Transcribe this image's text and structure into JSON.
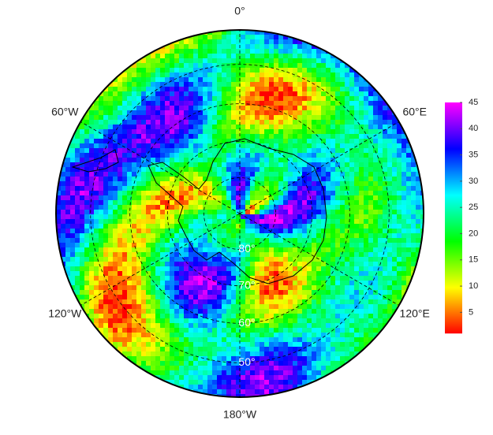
{
  "map": {
    "longitude_labels": [
      {
        "value": 0,
        "label": "0°"
      },
      {
        "value": 60,
        "label": "60°E"
      },
      {
        "value": 120,
        "label": "120°E"
      },
      {
        "value": -180,
        "label": "180°W"
      },
      {
        "value": -120,
        "label": "120°W"
      },
      {
        "value": -60,
        "label": "60°W"
      }
    ],
    "latitude_labels": [
      {
        "value": 80,
        "label": "80°"
      },
      {
        "value": 70,
        "label": "70°"
      },
      {
        "value": 60,
        "label": "60°"
      },
      {
        "value": 50,
        "label": "50°"
      }
    ],
    "colorbar": {
      "range": [
        1,
        45
      ],
      "ticks": [
        5,
        10,
        15,
        20,
        25,
        30,
        35,
        40,
        45
      ]
    }
  }
}
